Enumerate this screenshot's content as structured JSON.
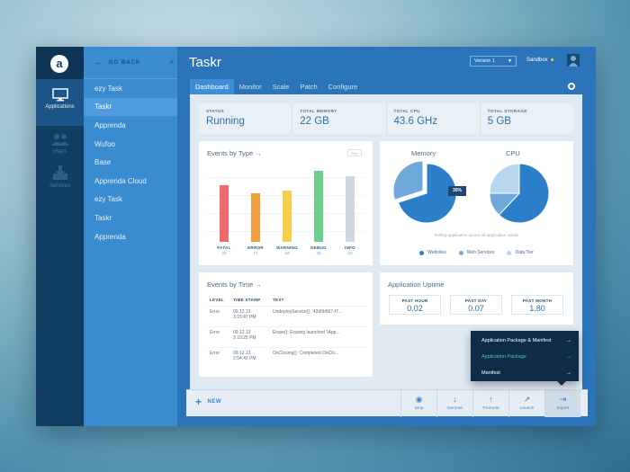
{
  "rail": {
    "logo_letter": "a",
    "items": [
      {
        "label": "Applications",
        "icon": "monitor-icon",
        "active": true
      },
      {
        "label": "Users",
        "icon": "users-icon",
        "active": false
      },
      {
        "label": "Services",
        "icon": "download-icon",
        "active": false
      }
    ]
  },
  "apps": {
    "back_label": "GO BACK",
    "collapse_glyph": "«",
    "items": [
      "ezy Task",
      "Taskr",
      "Apprenda",
      "Wufoo",
      "Base",
      "Apprenda Cloud",
      "ezy Task",
      "Taskr",
      "Apprenda"
    ],
    "active_index": 1
  },
  "header": {
    "title": "Taskr",
    "version_label": "Version 1",
    "environment_label": "Sandbox",
    "tabs": [
      "Dashboard",
      "Monitor",
      "Scale",
      "Patch",
      "Configure"
    ],
    "active_tab": 0
  },
  "stats": [
    {
      "key": "STATUS",
      "value": "Running"
    },
    {
      "key": "TOTAL MEMORY",
      "value": "22 GB"
    },
    {
      "key": "TOTAL CPU",
      "value": "43.6 GHz"
    },
    {
      "key": "TOTAL STORAGE",
      "value": "5 GB"
    }
  ],
  "events_by_type": {
    "title": "Events by Type",
    "arrow": "→",
    "range_label": "24hr"
  },
  "resources": {
    "memory_label": "Memory",
    "cpu_label": "CPU",
    "tooltip": "30%",
    "note": "Rolling application across all application stacks",
    "legend": [
      {
        "name": "Websites",
        "color": "#2b7fc9"
      },
      {
        "name": "Web Services",
        "color": "#6fa9dc"
      },
      {
        "name": "Data Tier",
        "color": "#b9d6ef"
      }
    ]
  },
  "events_by_time": {
    "title": "Events by Time",
    "arrow": "→",
    "columns": [
      "LEVEL",
      "TIME STAMP",
      "TEXT"
    ],
    "rows": [
      {
        "level": "Error",
        "date": "09.12.13",
        "time": "3:15:47 PM",
        "text": "UndeployService(): '42d0b567-f7..."
      },
      {
        "level": "Error",
        "date": "09.12.13",
        "time": "3:10:25 PM",
        "text": "Erase(): Erasing launched '\\App..."
      },
      {
        "level": "Error",
        "date": "09.12.13",
        "time": "2:54:43 PM",
        "text": "OnClosing(): Completed OnClo..."
      }
    ]
  },
  "uptime": {
    "title": "Application Uptime",
    "boxes": [
      {
        "key": "PAST HOUR",
        "value": "0.02"
      },
      {
        "key": "PAST DAY",
        "value": "0.07"
      },
      {
        "key": "PAST MONTH",
        "value": "1.80"
      }
    ]
  },
  "bottombar": {
    "new_label": "NEW",
    "actions": [
      {
        "label": "Stop",
        "icon": "stop-icon",
        "glyph": "◉"
      },
      {
        "label": "Demote",
        "icon": "arrow-down-icon",
        "glyph": "↓"
      },
      {
        "label": "Promote",
        "icon": "arrow-up-icon",
        "glyph": "↑"
      },
      {
        "label": "Launch",
        "icon": "launch-icon",
        "glyph": "↗"
      },
      {
        "label": "Export",
        "icon": "export-icon",
        "glyph": "⇥"
      }
    ]
  },
  "export_menu": {
    "items": [
      "Application Package & Manifest",
      "Application Package",
      "Manifest"
    ],
    "highlight_index": 1,
    "chevron": "→"
  },
  "chart_data": [
    {
      "type": "bar",
      "title": "Events by Type",
      "categories": [
        "FATAL",
        "ERROR",
        "WARNING",
        "DEBUG",
        "INFO"
      ],
      "values": [
        20,
        17,
        18,
        25,
        23
      ],
      "colors": [
        "#ef6b6b",
        "#f2a03d",
        "#f5cf4a",
        "#6cd08b",
        "#cfd8e0"
      ]
    },
    {
      "type": "pie",
      "title": "Memory",
      "categories": [
        "Websites",
        "Web Services",
        "Data Tier"
      ],
      "values": [
        70,
        30,
        0
      ],
      "colors": [
        "#2b7fc9",
        "#6fa9dc",
        "#b9d6ef"
      ]
    },
    {
      "type": "pie",
      "title": "CPU",
      "categories": [
        "Websites",
        "Web Services",
        "Data Tier"
      ],
      "values": [
        62,
        13,
        25
      ],
      "colors": [
        "#2b7fc9",
        "#6fa9dc",
        "#b9d6ef"
      ]
    }
  ]
}
